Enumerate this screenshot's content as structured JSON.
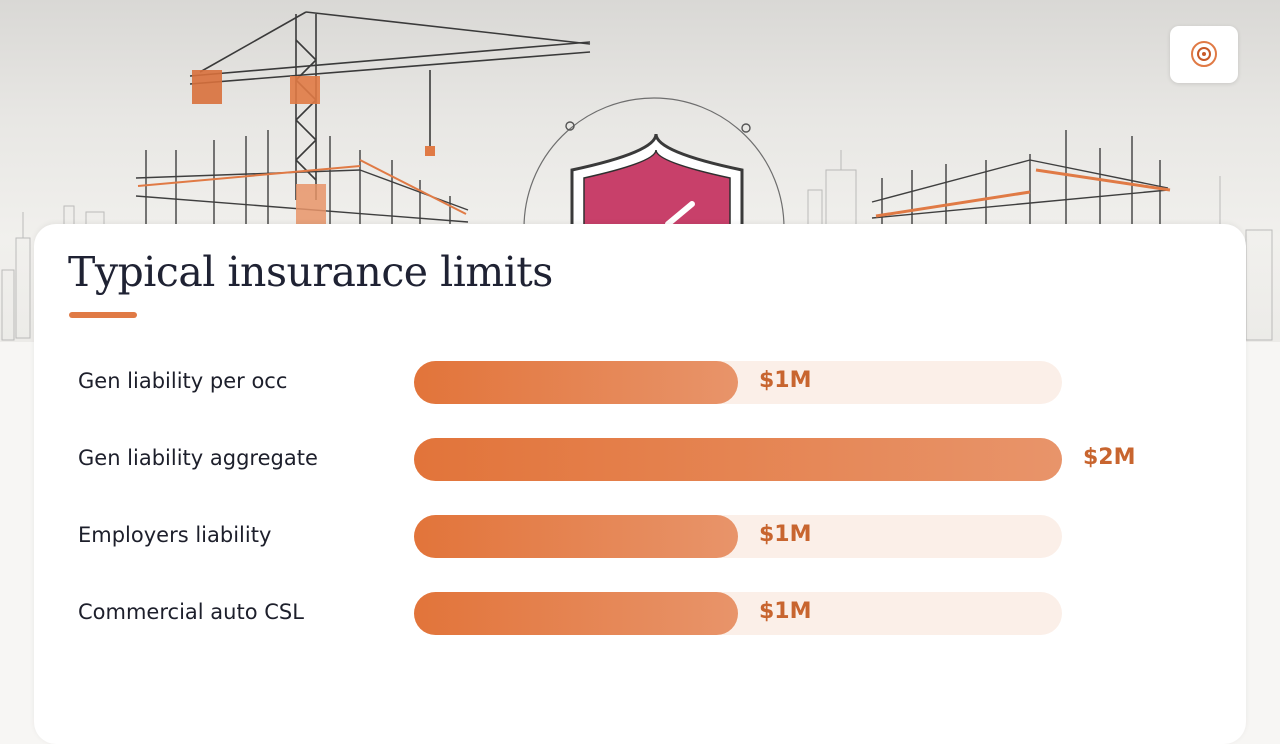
{
  "slide": {
    "title": "Typical insurance limits"
  },
  "colors": {
    "accent": "#e07a45",
    "bar_start": "#e2743a",
    "bar_end": "#e8946a",
    "track": "#fbefe8",
    "value_text": "#c8652f",
    "title_text": "#1f2233",
    "shield": "#c8406a"
  },
  "hero": {
    "icons": [
      "tower-crane-icon",
      "building-frame-icon",
      "shield-icon",
      "steel-frame-icon",
      "city-skyline-icon"
    ]
  },
  "logo": {
    "icon": "brand-logo-icon"
  },
  "chart_data": {
    "type": "bar",
    "orientation": "horizontal",
    "categories": [
      "Gen liability per occ",
      "Gen liability aggregate",
      "Employers liability",
      "Commercial auto CSL"
    ],
    "values": [
      1,
      2,
      1,
      1
    ],
    "value_labels": [
      "$1M",
      "$2M",
      "$1M",
      "$1M"
    ],
    "unit": "$M",
    "xlim": [
      0,
      2
    ],
    "grid": false,
    "legend": "none"
  }
}
